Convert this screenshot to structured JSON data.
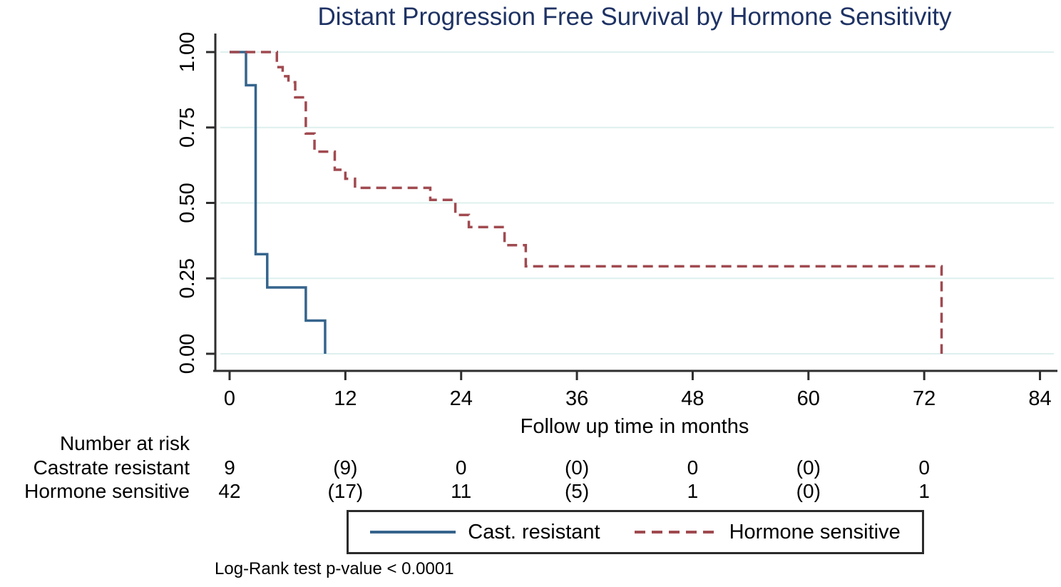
{
  "title": "Distant Progression Free Survival by Hormone Sensitivity",
  "colors": {
    "title": "#1e3264",
    "axis": "#2e2e2e",
    "grid": "#def0ee",
    "text": "#000000",
    "cast_resistant": "#35648c",
    "hormone_sensitive": "#a04a50"
  },
  "chart_data": {
    "type": "line",
    "subtype": "kaplan-meier-step",
    "title": "Distant Progression Free Survival by Hormone Sensitivity",
    "xlabel": "Follow up time in months",
    "ylabel": "",
    "x_ticks": [
      0,
      12,
      24,
      36,
      48,
      60,
      72,
      84
    ],
    "y_ticks": [
      0.0,
      0.25,
      0.5,
      0.75,
      1.0
    ],
    "y_tick_labels": [
      "0.00",
      "0.25",
      "0.50",
      "0.75",
      "1.00"
    ],
    "xlim": [
      0,
      86
    ],
    "ylim": [
      0.0,
      1.0
    ],
    "grid": "horizontal-only",
    "legend_position": "bottom",
    "series": [
      {
        "name": "Cast. resistant",
        "style": "solid",
        "color_key": "cast_resistant",
        "steps": [
          [
            0,
            1.0
          ],
          [
            1.7,
            0.89
          ],
          [
            2.7,
            0.33
          ],
          [
            3.9,
            0.22
          ],
          [
            7.9,
            0.11
          ],
          [
            9.9,
            0.0
          ]
        ]
      },
      {
        "name": "Hormone sensitive",
        "style": "dashed",
        "color_key": "hormone_sensitive",
        "steps": [
          [
            0,
            1.0
          ],
          [
            4.9,
            0.95
          ],
          [
            5.5,
            0.92
          ],
          [
            6.1,
            0.9
          ],
          [
            6.8,
            0.85
          ],
          [
            7.9,
            0.73
          ],
          [
            8.8,
            0.67
          ],
          [
            10.9,
            0.61
          ],
          [
            12.0,
            0.58
          ],
          [
            13.0,
            0.55
          ],
          [
            20.8,
            0.51
          ],
          [
            23.4,
            0.46
          ],
          [
            24.8,
            0.42
          ],
          [
            28.5,
            0.36
          ],
          [
            30.7,
            0.29
          ],
          [
            73.8,
            0.0
          ]
        ]
      }
    ]
  },
  "risk_table": {
    "header": "Number at risk",
    "time_points": [
      0,
      12,
      24,
      36,
      48,
      60,
      72
    ],
    "rows": [
      {
        "label": "Castrate resistant",
        "values": [
          "9",
          "(9)",
          "0",
          "(0)",
          "0",
          "(0)",
          "0"
        ]
      },
      {
        "label": "Hormone sensitive",
        "values": [
          "42",
          "(17)",
          "11",
          "(5)",
          "1",
          "(0)",
          "1"
        ]
      }
    ]
  },
  "legend": {
    "items": [
      {
        "label": "Cast. resistant",
        "style": "solid",
        "color_key": "cast_resistant"
      },
      {
        "label": "Hormone sensitive",
        "style": "dashed",
        "color_key": "hormone_sensitive"
      }
    ]
  },
  "footnote": "Log-Rank test p-value < 0.0001"
}
